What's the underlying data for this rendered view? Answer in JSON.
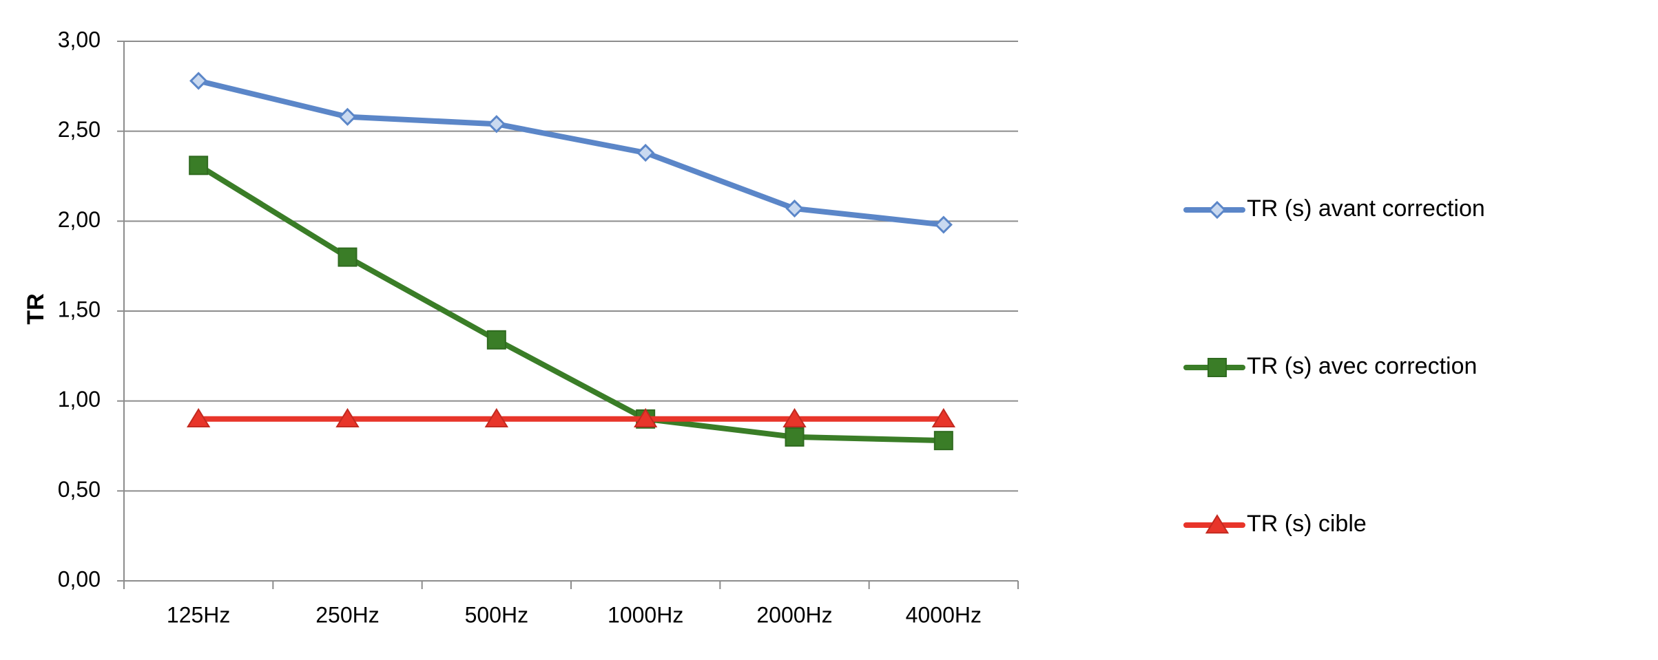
{
  "chart_data": {
    "type": "line",
    "title": "",
    "xlabel": "",
    "ylabel": "TR",
    "categories": [
      "125Hz",
      "250Hz",
      "500Hz",
      "1000Hz",
      "2000Hz",
      "4000Hz"
    ],
    "ylim": [
      0,
      3
    ],
    "yticks": [
      0,
      0.5,
      1,
      1.5,
      2,
      2.5,
      3
    ],
    "ytick_labels": [
      "0,00",
      "0,50",
      "1,00",
      "1,50",
      "2,00",
      "2,50",
      "3,00"
    ],
    "grid": "horizontal",
    "legend_position": "right",
    "series": [
      {
        "name": "TR (s) avant correction",
        "values": [
          2.78,
          2.58,
          2.54,
          2.38,
          2.07,
          1.98
        ],
        "color": "#5b86c8",
        "marker": "diamond"
      },
      {
        "name": "TR (s) avec correction",
        "values": [
          2.31,
          1.8,
          1.34,
          0.9,
          0.8,
          0.78
        ],
        "color": "#3a7d27",
        "marker": "square"
      },
      {
        "name": "TR (s) cible",
        "values": [
          0.9,
          0.9,
          0.9,
          0.9,
          0.9,
          0.9
        ],
        "color": "#e8352a",
        "marker": "triangle"
      }
    ]
  }
}
